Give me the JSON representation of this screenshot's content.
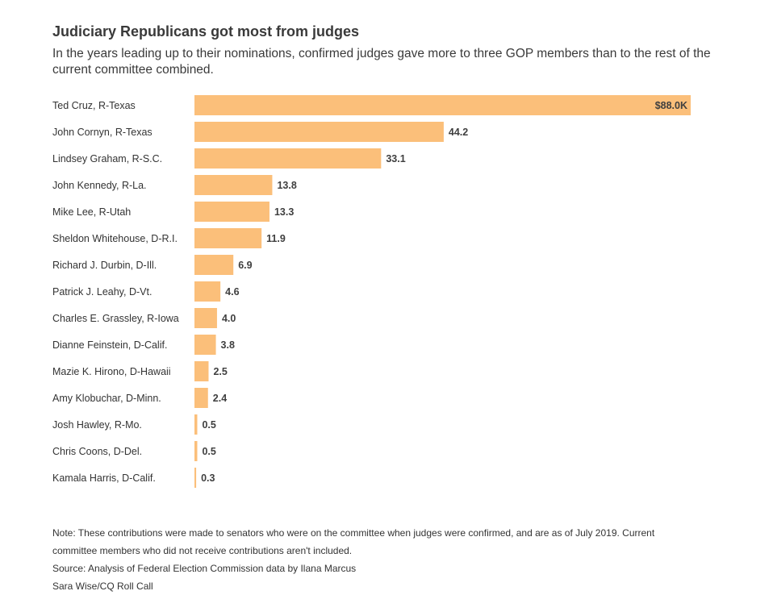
{
  "header": {
    "title": "Judiciary Republicans got most from judges",
    "subtitle": "In the years leading up to their nominations, confirmed judges gave more to three GOP members than to the rest of the current committee combined."
  },
  "chart_data": {
    "type": "bar",
    "orientation": "horizontal",
    "categories": [
      "Ted Cruz, R-Texas",
      "John Cornyn, R-Texas",
      "Lindsey Graham, R-S.C.",
      "John Kennedy, R-La.",
      "Mike Lee, R-Utah",
      "Sheldon Whitehouse, D-R.I.",
      "Richard J. Durbin, D-Ill.",
      "Patrick J. Leahy, D-Vt.",
      "Charles E. Grassley, R-Iowa",
      "Dianne Feinstein, D-Calif.",
      "Mazie K. Hirono, D-Hawaii",
      "Amy Klobuchar, D-Minn.",
      "Josh Hawley, R-Mo.",
      "Chris Coons, D-Del.",
      "Kamala Harris, D-Calif."
    ],
    "values": [
      88.0,
      44.2,
      33.1,
      13.8,
      13.3,
      11.9,
      6.9,
      4.6,
      4.0,
      3.8,
      2.5,
      2.4,
      0.5,
      0.5,
      0.3
    ],
    "value_labels": [
      "$88.0K",
      "44.2",
      "33.1",
      "13.8",
      "13.3",
      "11.9",
      "6.9",
      "4.6",
      "4.0",
      "3.8",
      "2.5",
      "2.4",
      "0.5",
      "0.5",
      "0.3"
    ],
    "xlim": [
      0,
      88
    ],
    "grid": false,
    "bar_color": "#fbbf7a"
  },
  "footer": {
    "note": "Note: These contributions were made to senators who were on the committee when judges were confirmed, and are as of July 2019. Current committee members who did not receive contributions aren't included.",
    "source": "Source: Analysis of Federal Election Commission data by Ilana Marcus",
    "credit": "Sara Wise/CQ Roll Call"
  }
}
